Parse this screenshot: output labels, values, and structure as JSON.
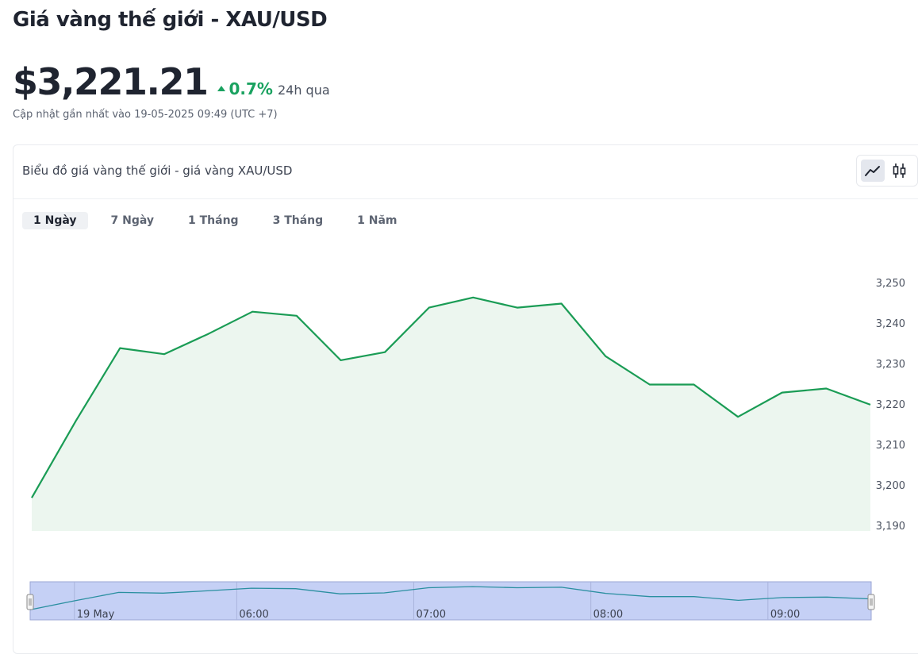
{
  "page": {
    "title": "Giá vàng thế giới - XAU/USD",
    "price": "$3,221.21",
    "change": "0.7%",
    "change_period": "24h qua",
    "updated": "Cập nhật gần nhất vào 19-05-2025 09:49 (UTC +7)"
  },
  "card": {
    "title": "Biểu đồ giá vàng thế giới - giá vàng XAU/USD",
    "toggle": [
      {
        "icon": "line-chart-icon",
        "active": true
      },
      {
        "icon": "candlestick-chart-icon",
        "active": false
      }
    ],
    "tabs": [
      {
        "label": "1 Ngày",
        "active": true
      },
      {
        "label": "7 Ngày",
        "active": false
      },
      {
        "label": "1 Tháng",
        "active": false
      },
      {
        "label": "3 Tháng",
        "active": false
      },
      {
        "label": "1 Năm",
        "active": false
      }
    ]
  },
  "colors": {
    "line": "#1a9c55",
    "area": "#ecf6ef",
    "up": "#1aa260",
    "navigator_fill": "#c5d0f5",
    "navigator_line": "#2a8fa0"
  },
  "chart_data": {
    "type": "area",
    "title": "",
    "xlabel": "",
    "ylabel": "",
    "ylim": [
      3188.8,
      3250
    ],
    "y_ticks": [
      3190,
      3200,
      3210,
      3220,
      3230,
      3240,
      3250
    ],
    "y_tick_labels": [
      "3,190",
      "3,200",
      "3,210",
      "3,220",
      "3,230",
      "3,240",
      "3,250"
    ],
    "x_minutes": [
      290,
      305,
      320,
      335,
      350,
      365,
      380,
      395,
      410,
      425,
      440,
      455,
      470,
      485,
      500,
      515,
      530,
      545,
      560,
      575
    ],
    "values": [
      3197,
      3216,
      3234,
      3232.5,
      3237.5,
      3243,
      3242,
      3231,
      3233,
      3244,
      3246.5,
      3244,
      3245,
      3232,
      3225,
      3225,
      3217,
      3223,
      3224,
      3220
    ],
    "navigator_ticks": [
      {
        "minute": 305,
        "label": "19 May"
      },
      {
        "minute": 360,
        "label": "06:00"
      },
      {
        "minute": 420,
        "label": "07:00"
      },
      {
        "minute": 480,
        "label": "08:00"
      },
      {
        "minute": 540,
        "label": "09:00"
      }
    ],
    "grid": false,
    "legend": "none"
  }
}
